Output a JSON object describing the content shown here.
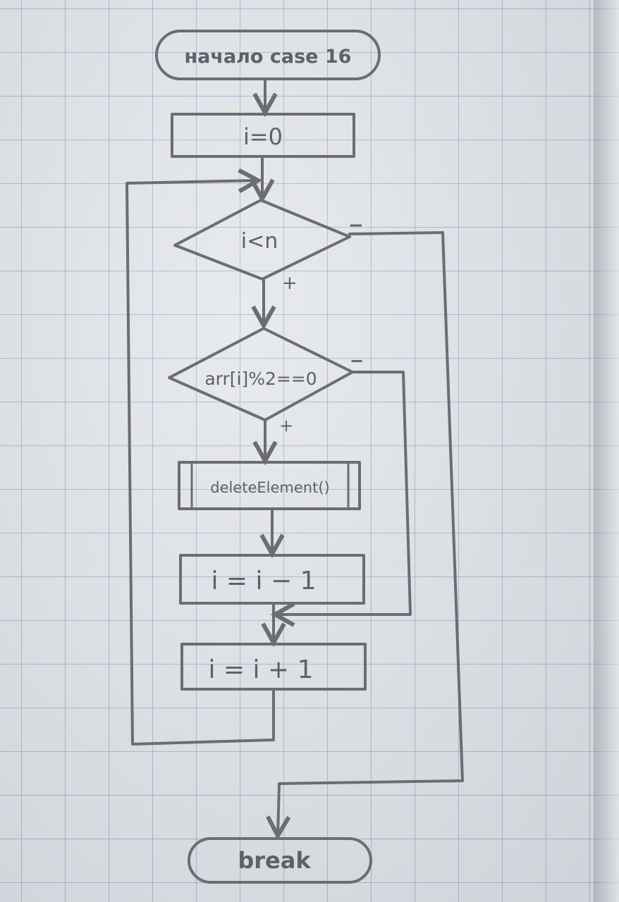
{
  "diagram": {
    "start": "начало case 16",
    "init": "i=0",
    "loop_condition": "i<n",
    "loop_yes": "+",
    "loop_no": "−",
    "even_condition": "arr[i]%2==0",
    "even_yes": "+",
    "even_no": "−",
    "subroutine": "deleteElement()",
    "decrement": "i = i − 1",
    "increment": "i = i + 1",
    "end": "break"
  },
  "colors": {
    "pencil": "#6b6d71",
    "grid": "#6080b2",
    "paper": "#e3e6ea"
  }
}
